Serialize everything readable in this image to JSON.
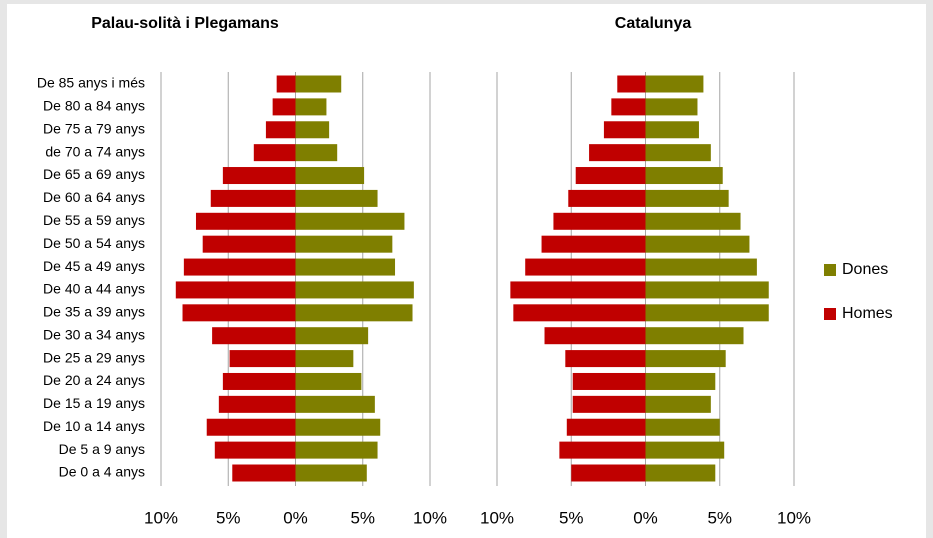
{
  "chart_data": [
    {
      "type": "bar",
      "orientation": "horizontal",
      "stacked": true,
      "title": "Palau-solità i Plegamans",
      "categories": [
        "De 0 a 4 anys",
        "De 5 a 9 anys",
        "De 10 a 14 anys",
        "De 15 a 19 anys",
        "De 20 a 24 anys",
        "De 25 a 29 anys",
        "De 30 a 34 anys",
        "De 35 a 39 anys",
        "De 40 a 44 anys",
        "De 45 a 49 anys",
        "De 50 a 54 anys",
        "De 55 a 59 anys",
        "De 60 a 64 anys",
        "De 65 a 69 anys",
        "de 70 a 74 anys",
        "De 75 a 79 anys",
        "De 80 a 84 anys",
        "De 85 anys i més"
      ],
      "series": [
        {
          "name": "Dones",
          "color": "#7f7f00",
          "values": [
            5.3,
            6.1,
            6.3,
            5.9,
            4.9,
            4.3,
            5.4,
            8.7,
            8.8,
            7.4,
            7.2,
            8.1,
            6.1,
            5.1,
            3.1,
            2.5,
            2.3,
            3.4
          ]
        },
        {
          "name": "Homes",
          "color": "#c00000",
          "values": [
            -4.7,
            -6.0,
            -6.6,
            -5.7,
            -5.4,
            -4.9,
            -6.2,
            -8.4,
            -8.9,
            -8.3,
            -6.9,
            -7.4,
            -6.3,
            -5.4,
            -3.1,
            -2.2,
            -1.7,
            -1.4
          ]
        }
      ],
      "xlim": [
        -10,
        10
      ],
      "xticks": [
        {
          "value": -10,
          "label": "10%"
        },
        {
          "value": -5,
          "label": "5%"
        },
        {
          "value": 0,
          "label": "0%"
        },
        {
          "value": 5,
          "label": "5%"
        },
        {
          "value": 10,
          "label": "10%"
        }
      ],
      "grid": true
    },
    {
      "type": "bar",
      "orientation": "horizontal",
      "stacked": true,
      "title": "Catalunya",
      "series": [
        {
          "name": "Dones",
          "color": "#7f7f00",
          "values": [
            4.7,
            5.3,
            5.0,
            4.4,
            4.7,
            5.4,
            6.6,
            8.3,
            8.3,
            7.5,
            7.0,
            6.4,
            5.6,
            5.2,
            4.4,
            3.6,
            3.5,
            3.9
          ]
        },
        {
          "name": "Homes",
          "color": "#c00000",
          "values": [
            -5.0,
            -5.8,
            -5.3,
            -4.9,
            -4.9,
            -5.4,
            -6.8,
            -8.9,
            -9.1,
            -8.1,
            -7.0,
            -6.2,
            -5.2,
            -4.7,
            -3.8,
            -2.8,
            -2.3,
            -1.9
          ]
        }
      ],
      "xlim": [
        -10,
        10
      ],
      "xticks": [
        {
          "value": -10,
          "label": "10%"
        },
        {
          "value": -5,
          "label": "5%"
        },
        {
          "value": 0,
          "label": "0%"
        },
        {
          "value": 5,
          "label": "5%"
        },
        {
          "value": 10,
          "label": "10%"
        }
      ],
      "grid": true,
      "legend": "right"
    }
  ]
}
